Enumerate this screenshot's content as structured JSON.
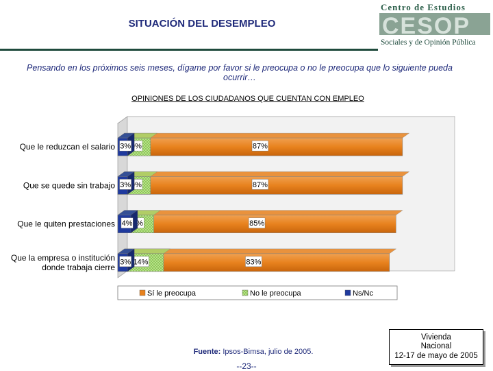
{
  "header": {
    "title": "SITUACIÓN DEL DESEMPLEO",
    "logo": {
      "line1": "Centro de Estudios",
      "big": "CESOP",
      "line2": "Sociales y de Opinión Pública"
    }
  },
  "question": "Pensando en los próximos seis meses, dígame por favor si le preocupa o no le preocupa que lo siguiente pueda ocurrir…",
  "subtitle": "OPINIONES DE LOS CIUDADANOS QUE CUENTAN CON EMPLEO",
  "chart_data": {
    "type": "bar",
    "orientation": "horizontal",
    "stacked": true,
    "percent": true,
    "categories": [
      [
        "Que le reduzcan el salario"
      ],
      [
        "Que se quede sin trabajo"
      ],
      [
        "Que le quiten prestaciones"
      ],
      [
        "Que la empresa o institución",
        "donde trabaja cierre"
      ]
    ],
    "series": [
      {
        "name": "Sí le preocupa",
        "values": [
          87,
          87,
          85,
          83
        ],
        "color": "#E8821E"
      },
      {
        "name": "No le preocupa",
        "values": [
          10,
          10,
          11,
          14
        ],
        "color": "#A8D86E"
      },
      {
        "name": "Ns/Nc",
        "values": [
          3,
          3,
          4,
          3
        ],
        "color": "#1F3A9E"
      }
    ],
    "xlim": [
      0,
      100
    ],
    "legend": "bottom",
    "grid": false
  },
  "footer": {
    "source_label": "Fuente:",
    "source_text": " Ipsos-Bimsa, julio de 2005.",
    "page": "--23--",
    "survey_lines": [
      "Vivienda",
      "Nacional",
      "12-17 de mayo de 2005"
    ]
  }
}
